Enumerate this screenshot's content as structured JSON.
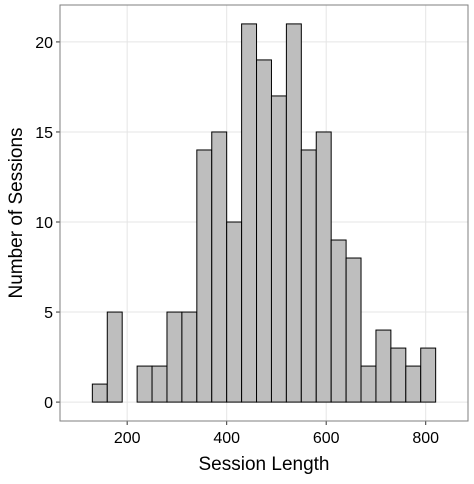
{
  "chart_data": {
    "type": "histogram",
    "x_label": "Session Length",
    "y_label": "Number of Sessions",
    "bins": [
      100,
      130,
      160,
      190,
      220,
      250,
      280,
      310,
      340,
      370,
      400,
      430,
      460,
      490,
      520,
      550,
      580,
      610,
      640,
      670,
      700,
      730,
      760,
      790,
      820,
      850
    ],
    "values": [
      0,
      1,
      5,
      0,
      2,
      2,
      5,
      5,
      14,
      15,
      10,
      21,
      19,
      17,
      21,
      14,
      15,
      9,
      8,
      2,
      4,
      3,
      2,
      3,
      0
    ],
    "color": "#bebebe",
    "edge_color": "#000000",
    "xlim": [
      65,
      885
    ],
    "ylim": [
      -1.05,
      22.05
    ],
    "xticks": [
      200,
      400,
      600,
      800
    ],
    "yticks": [
      0,
      5,
      10,
      15,
      20
    ],
    "grid": true
  }
}
